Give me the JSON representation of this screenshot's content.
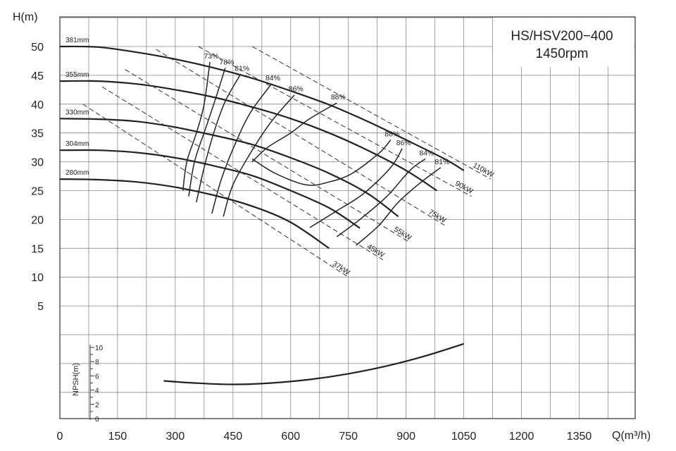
{
  "chart_data": {
    "type": "line",
    "title": "HS/HSV200−400",
    "subtitle": "1450rpm",
    "xlabel": "Q(m³/h)",
    "ylabel": "H(m)",
    "npsh_label": "NPSH(m)",
    "xlim": [
      0,
      1500
    ],
    "ylim": [
      -20,
      55
    ],
    "x_ticks": [
      "0",
      "150",
      "300",
      "450",
      "600",
      "750",
      "900",
      "1050",
      "1200",
      "1350"
    ],
    "y_ticks": [
      "5",
      "10",
      "15",
      "20",
      "25",
      "30",
      "35",
      "40",
      "45",
      "50"
    ],
    "npsh_ticks": [
      "0",
      "2",
      "4",
      "6",
      "8",
      "10"
    ],
    "grid": true,
    "impellers": [
      {
        "name": "381mm",
        "x": [
          0,
          100,
          200,
          300,
          400,
          500,
          600,
          700,
          800,
          900,
          1000,
          1050
        ],
        "y": [
          50,
          49.9,
          49,
          47.8,
          46.3,
          44.5,
          42.3,
          39.9,
          37,
          33.8,
          30.5,
          28.5
        ]
      },
      {
        "name": "355mm",
        "x": [
          0,
          100,
          200,
          300,
          400,
          500,
          600,
          700,
          800,
          900,
          980
        ],
        "y": [
          44,
          44,
          43.5,
          42.5,
          41.2,
          39.5,
          37.5,
          35,
          32,
          28.5,
          25
        ]
      },
      {
        "name": "330mm",
        "x": [
          0,
          100,
          200,
          300,
          400,
          500,
          600,
          700,
          800,
          880
        ],
        "y": [
          37.5,
          37.4,
          37,
          36,
          34.6,
          33,
          30.7,
          28,
          24.5,
          20.5
        ]
      },
      {
        "name": "304mm",
        "x": [
          0,
          100,
          200,
          300,
          400,
          500,
          600,
          700,
          780
        ],
        "y": [
          32,
          32,
          31.6,
          30.7,
          29.3,
          27.6,
          25,
          22,
          18.5
        ]
      },
      {
        "name": "280mm",
        "x": [
          0,
          100,
          200,
          300,
          400,
          500,
          600,
          700
        ],
        "y": [
          27,
          26.9,
          26.5,
          25.6,
          24.2,
          22.3,
          19.5,
          15
        ]
      }
    ],
    "efficiency_lines": [
      {
        "label": "73%",
        "x": [
          320,
          330,
          355,
          375,
          390
        ],
        "y": [
          25,
          30,
          35,
          40,
          47.3
        ]
      },
      {
        "label": "78%",
        "x": [
          335,
          350,
          380,
          405,
          430
        ],
        "y": [
          24,
          30,
          36,
          41,
          46.3
        ]
      },
      {
        "label": "81%",
        "x": [
          355,
          375,
          400,
          430,
          470
        ],
        "y": [
          23,
          29,
          35,
          40.5,
          45.2
        ]
      },
      {
        "label": "84%",
        "x": [
          395,
          420,
          455,
          495,
          550
        ],
        "y": [
          21,
          27,
          33,
          38.5,
          43.5
        ]
      },
      {
        "label": "86%",
        "x": [
          425,
          450,
          500,
          550,
          610
        ],
        "y": [
          20.5,
          26,
          32,
          37,
          41.6
        ]
      },
      {
        "label": "88%",
        "x": [
          500,
          540,
          600,
          650,
          720
        ],
        "y": [
          30,
          32.5,
          35,
          37.5,
          40.2
        ]
      },
      {
        "label": "88%",
        "x": [
          500,
          560,
          640,
          700,
          760,
          830,
          860
        ],
        "y": [
          30.5,
          28,
          26,
          26.5,
          28,
          31.5,
          33.8
        ]
      },
      {
        "label": "86%",
        "x": [
          650,
          720,
          790,
          860,
          890
        ],
        "y": [
          18.6,
          21.5,
          24.5,
          29,
          32.3
        ]
      },
      {
        "label": "84%",
        "x": [
          720,
          780,
          850,
          910,
          950
        ],
        "y": [
          17,
          20,
          24,
          28.5,
          30.5
        ]
      },
      {
        "label": "81%",
        "x": [
          770,
          830,
          880,
          940,
          990
        ],
        "y": [
          15.5,
          19,
          23,
          26.5,
          29
        ]
      }
    ],
    "power_lines": [
      {
        "name": "37kW",
        "x": [
          60,
          750
        ],
        "y": [
          40,
          10
        ]
      },
      {
        "name": "45kW",
        "x": [
          110,
          840
        ],
        "y": [
          43,
          13
        ]
      },
      {
        "name": "55kW",
        "x": [
          170,
          910
        ],
        "y": [
          46,
          16
        ]
      },
      {
        "name": "75kW",
        "x": [
          250,
          1000
        ],
        "y": [
          49.5,
          19
        ]
      },
      {
        "name": "90kW",
        "x": [
          360,
          1070
        ],
        "y": [
          50,
          24
        ]
      },
      {
        "name": "110kW",
        "x": [
          500,
          1120
        ],
        "y": [
          50,
          27
        ]
      }
    ],
    "npsh": {
      "x": [
        270,
        350,
        450,
        550,
        650,
        750,
        850,
        950,
        1050
      ],
      "y": [
        5.3,
        5,
        4.8,
        5,
        5.5,
        6.3,
        7.4,
        8.8,
        10.5
      ]
    }
  }
}
